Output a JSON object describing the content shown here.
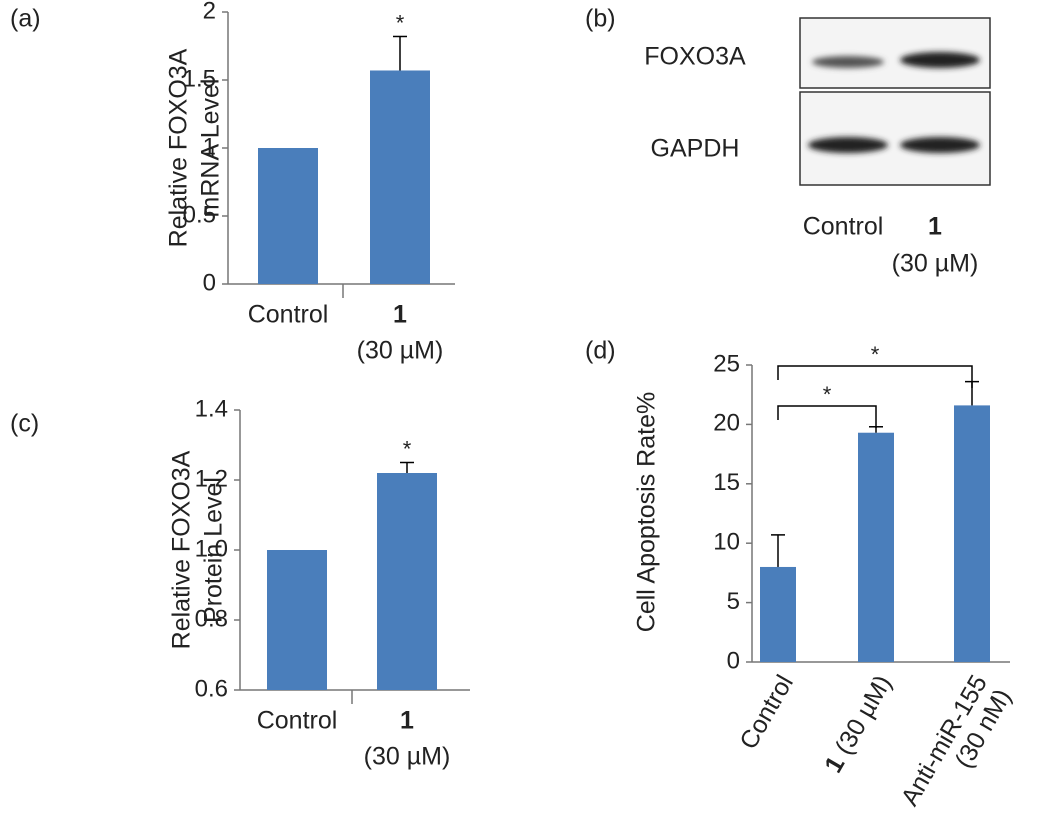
{
  "chart_data": [
    {
      "type": "bar",
      "panel": "(a)",
      "ylabel": [
        "Relative FOXO3A",
        "mRNA Level"
      ],
      "categories": [
        [
          "Control"
        ],
        [
          "1",
          "(30 µM)"
        ]
      ],
      "values": [
        1,
        1.57
      ],
      "errors": [
        null,
        0.25
      ],
      "significance": [
        null,
        "*"
      ],
      "color": "#4a7ebb",
      "ylim": [
        0,
        2
      ],
      "yticks": [
        0,
        0.5,
        1,
        1.5,
        2
      ]
    },
    {
      "type": "blot",
      "panel": "(b)",
      "rows": [
        "FOXO3A",
        "GAPDH"
      ],
      "lanes": [
        [
          "Control"
        ],
        [
          "1",
          "(30 µM)"
        ]
      ]
    },
    {
      "type": "bar",
      "panel": "(c)",
      "ylabel": [
        "Relative FOXO3A",
        "Protein Level"
      ],
      "categories": [
        [
          "Control"
        ],
        [
          "1",
          "(30 µM)"
        ]
      ],
      "values": [
        1.0,
        1.22
      ],
      "errors": [
        null,
        0.03
      ],
      "significance": [
        null,
        "*"
      ],
      "color": "#4a7ebb",
      "ylim": [
        0.6,
        1.4
      ],
      "yticks": [
        0.6,
        0.8,
        {
          "value": 1.0,
          "label": "1.0"
        },
        1.2,
        1.4
      ]
    },
    {
      "type": "bar",
      "panel": "(d)",
      "ylabel": [
        "Cell Apoptosis Rate%"
      ],
      "categories": [
        [
          "Control"
        ],
        [
          "1",
          " (30 µM)"
        ],
        [
          "Anti-miR-155",
          "(30 nM)"
        ]
      ],
      "values": [
        8,
        19.3,
        21.6
      ],
      "errors": [
        2.7,
        0.5,
        2.0
      ],
      "comparisons": [
        {
          "from": 0,
          "to": 1,
          "label": "*"
        },
        {
          "from": 0,
          "to": 2,
          "label": "*"
        }
      ],
      "color": "#4a7ebb",
      "ylim": [
        0,
        25
      ],
      "yticks": [
        0,
        5,
        10,
        15,
        20,
        25
      ]
    }
  ]
}
